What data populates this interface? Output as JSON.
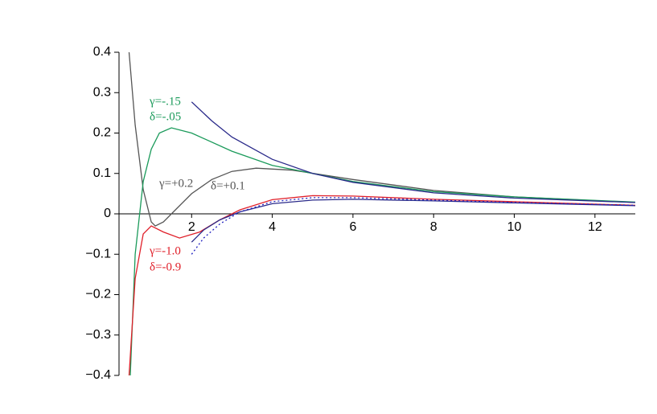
{
  "chart_data": {
    "type": "line",
    "xlim": [
      0.2,
      13
    ],
    "ylim": [
      -0.4,
      0.4
    ],
    "xticks": [
      2,
      4,
      6,
      8,
      10,
      12
    ],
    "yticks": [
      {
        "value": -0.4,
        "label": "−0.4"
      },
      {
        "value": -0.3,
        "label": "−0.3"
      },
      {
        "value": -0.2,
        "label": "−0.2"
      },
      {
        "value": -0.1,
        "label": "−0.1"
      },
      0,
      0.1,
      0.2,
      0.3,
      0.4
    ],
    "series": [
      {
        "color": "#555555",
        "style": "solid",
        "x": [
          0.45,
          0.6,
          0.8,
          1.0,
          1.1,
          1.3,
          1.6,
          2,
          2.5,
          3,
          3.6,
          4.5,
          6,
          8,
          10,
          13
        ],
        "values": [
          0.4,
          0.22,
          0.06,
          -0.02,
          -0.03,
          -0.02,
          0.01,
          0.05,
          0.085,
          0.105,
          0.113,
          0.108,
          0.085,
          0.058,
          0.042,
          0.028
        ]
      },
      {
        "color": "#1a9a5a",
        "style": "solid",
        "x": [
          0.48,
          0.6,
          0.8,
          1.0,
          1.2,
          1.5,
          2,
          3,
          4,
          6,
          8,
          10,
          13
        ],
        "values": [
          -0.4,
          -0.1,
          0.08,
          0.16,
          0.2,
          0.213,
          0.2,
          0.155,
          0.12,
          0.08,
          0.055,
          0.042,
          0.029
        ]
      },
      {
        "color": "#2a2a8a",
        "style": "solid",
        "x": [
          2,
          2.5,
          3,
          4,
          5,
          6,
          8,
          10,
          13
        ],
        "values": [
          0.277,
          0.23,
          0.19,
          0.135,
          0.1,
          0.078,
          0.052,
          0.039,
          0.028
        ]
      },
      {
        "color": "#e0202a",
        "style": "solid",
        "x": [
          0.45,
          0.6,
          0.8,
          1.0,
          1.3,
          1.7,
          2.2,
          2.7,
          3.2,
          4,
          5,
          6,
          8,
          10,
          13
        ],
        "values": [
          -0.4,
          -0.16,
          -0.05,
          -0.03,
          -0.045,
          -0.06,
          -0.045,
          -0.015,
          0.01,
          0.035,
          0.045,
          0.044,
          0.036,
          0.03,
          0.021
        ]
      },
      {
        "color": "#2a2a8a",
        "style": "solid",
        "x": [
          2,
          2.3,
          2.7,
          3.2,
          4,
          5,
          6,
          8,
          10,
          13
        ],
        "values": [
          -0.07,
          -0.04,
          -0.015,
          0.005,
          0.025,
          0.034,
          0.036,
          0.032,
          0.027,
          0.02
        ]
      },
      {
        "color": "#2020c0",
        "style": "dotted",
        "x": [
          2,
          2.3,
          2.7,
          3.2,
          4,
          5,
          6,
          8,
          10,
          13
        ],
        "values": [
          -0.1,
          -0.06,
          -0.025,
          0.005,
          0.03,
          0.04,
          0.04,
          0.034,
          0.028,
          0.021
        ]
      }
    ],
    "annotations": [
      {
        "text": "γ=-.15",
        "color": "#1a9a5a"
      },
      {
        "text": "δ=-.05",
        "color": "#1a9a5a"
      },
      {
        "text": "γ=+0.2",
        "color": "#555555"
      },
      {
        "text": "δ=+0.1",
        "color": "#555555"
      },
      {
        "text": "γ=-1.0",
        "color": "#e0202a"
      },
      {
        "text": "δ=-0.9",
        "color": "#e0202a"
      }
    ]
  }
}
